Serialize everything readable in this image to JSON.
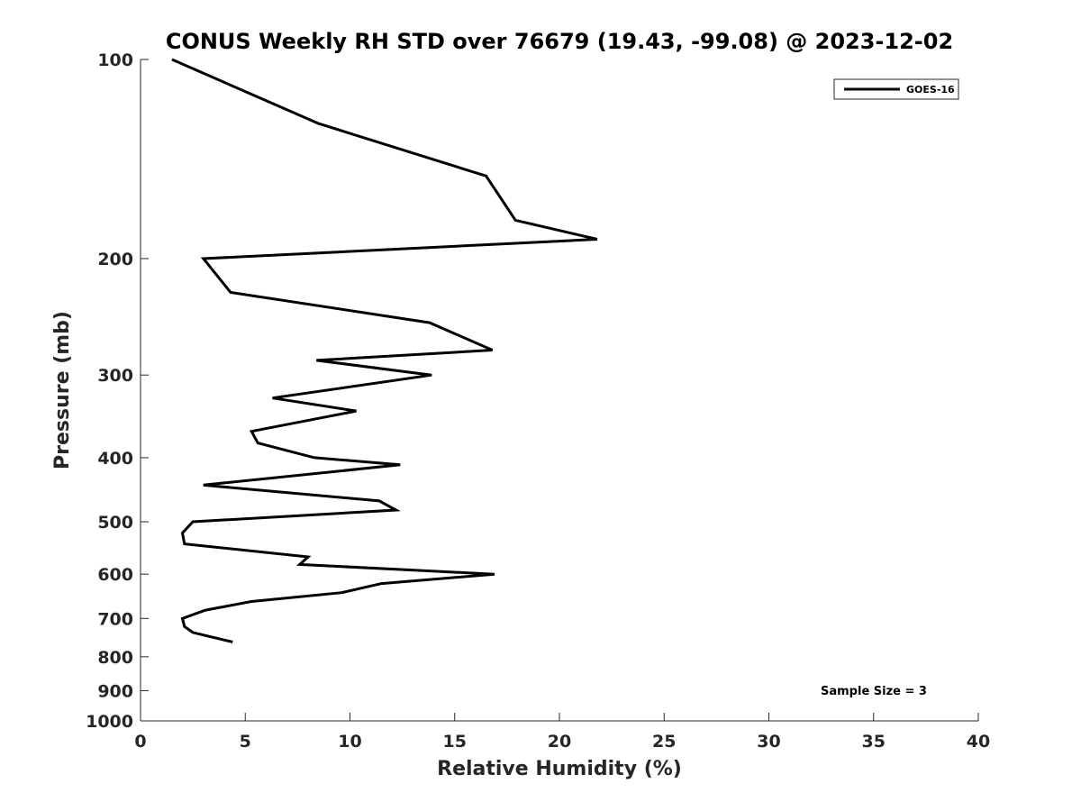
{
  "chart_data": {
    "type": "line",
    "title": "CONUS Weekly RH STD over 76679 (19.43, -99.08) @ 2023-12-02",
    "xlabel": "Relative Humidity (%)",
    "ylabel": "Pressure (mb)",
    "xlim": [
      0,
      40
    ],
    "ylim": [
      100,
      1000
    ],
    "y_scale": "log",
    "y_reversed": true,
    "grid": false,
    "legend_position": "top-right",
    "x_ticks": [
      "0",
      "5",
      "10",
      "15",
      "20",
      "25",
      "30",
      "35",
      "40"
    ],
    "y_ticks": [
      "100",
      "200",
      "300",
      "400",
      "500",
      "600",
      "700",
      "800",
      "900",
      "1000"
    ],
    "series": [
      {
        "name": "GOES-16",
        "color": "#000000",
        "points": [
          [
            1.5,
            100
          ],
          [
            8.5,
            125
          ],
          [
            16.5,
            150
          ],
          [
            17.9,
            175
          ],
          [
            21.8,
            187
          ],
          [
            3.0,
            200
          ],
          [
            4.3,
            225
          ],
          [
            13.8,
            250
          ],
          [
            16.8,
            275
          ],
          [
            8.4,
            285
          ],
          [
            13.9,
            300
          ],
          [
            6.3,
            325
          ],
          [
            10.3,
            340
          ],
          [
            5.3,
            365
          ],
          [
            5.6,
            380
          ],
          [
            8.3,
            400
          ],
          [
            12.4,
            410
          ],
          [
            3.0,
            440
          ],
          [
            11.4,
            465
          ],
          [
            12.2,
            480
          ],
          [
            2.5,
            500
          ],
          [
            2.0,
            520
          ],
          [
            2.1,
            540
          ],
          [
            8.0,
            565
          ],
          [
            7.6,
            580
          ],
          [
            16.9,
            600
          ],
          [
            11.5,
            620
          ],
          [
            9.6,
            640
          ],
          [
            5.3,
            660
          ],
          [
            3.1,
            680
          ],
          [
            2.0,
            700
          ],
          [
            2.1,
            720
          ],
          [
            2.5,
            735
          ],
          [
            4.4,
            760
          ]
        ]
      }
    ],
    "annotations": [
      "Sample Size = 3"
    ]
  }
}
